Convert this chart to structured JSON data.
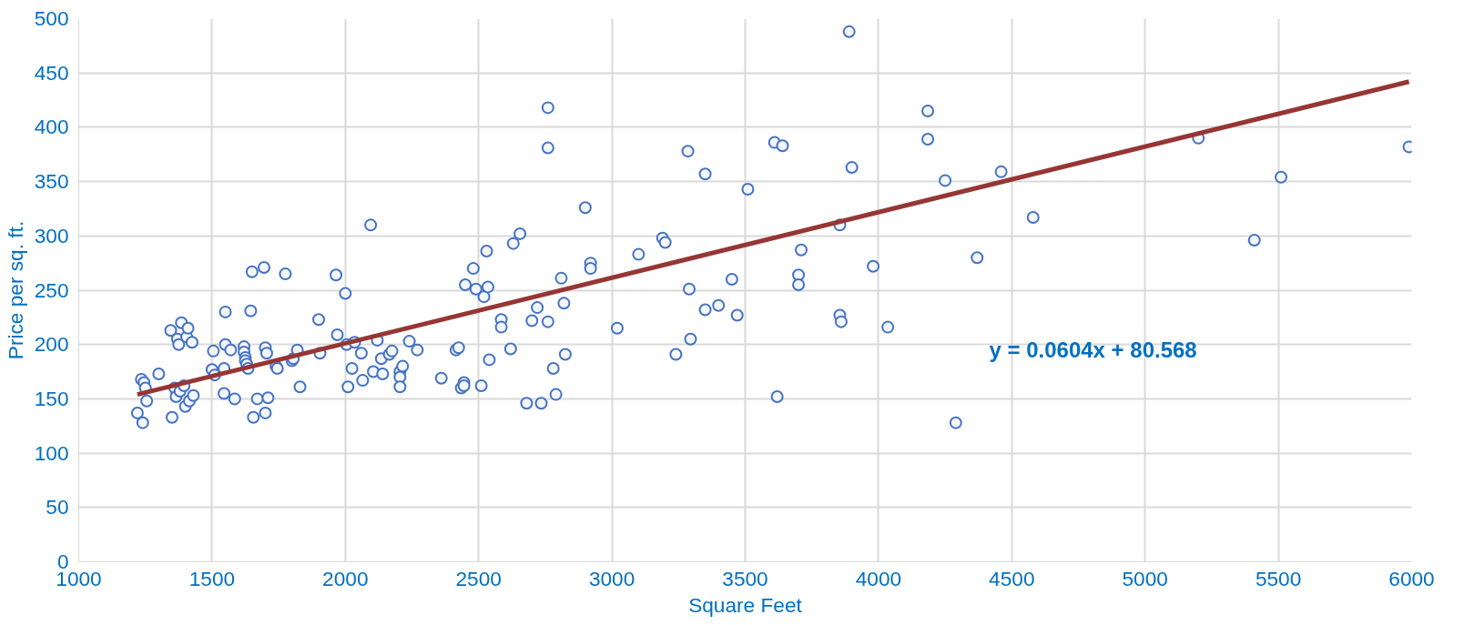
{
  "chart_data": {
    "type": "scatter",
    "xlabel": "Square Feet",
    "ylabel": "Price per sq. ft.",
    "xlim": [
      1000,
      6000
    ],
    "ylim": [
      0,
      500
    ],
    "xticks": [
      1000,
      1500,
      2000,
      2500,
      3000,
      3500,
      4000,
      4500,
      5000,
      5500,
      6000
    ],
    "yticks": [
      0,
      50,
      100,
      150,
      200,
      250,
      300,
      350,
      400,
      450,
      500
    ],
    "grid": true,
    "marker": "circle",
    "annotations": [
      "y = 0.0604x + 80.568"
    ],
    "series": [
      {
        "color": "#4472c4",
        "x": [
          1220,
          1235,
          1240,
          1245,
          1250,
          1255,
          1300,
          1345,
          1350,
          1360,
          1365,
          1370,
          1375,
          1380,
          1385,
          1395,
          1400,
          1405,
          1410,
          1415,
          1425,
          1430,
          1500,
          1505,
          1510,
          1545,
          1545,
          1550,
          1550,
          1570,
          1585,
          1620,
          1620,
          1625,
          1625,
          1630,
          1635,
          1645,
          1650,
          1655,
          1670,
          1695,
          1700,
          1700,
          1705,
          1710,
          1740,
          1745,
          1775,
          1800,
          1805,
          1820,
          1830,
          1900,
          1905,
          1965,
          1970,
          2000,
          2005,
          2010,
          2025,
          2035,
          2060,
          2065,
          2095,
          2105,
          2120,
          2135,
          2140,
          2165,
          2175,
          2205,
          2205,
          2205,
          2215,
          2240,
          2270,
          2360,
          2415,
          2425,
          2435,
          2445,
          2445,
          2450,
          2480,
          2490,
          2510,
          2520,
          2530,
          2535,
          2540,
          2585,
          2585,
          2620,
          2630,
          2655,
          2680,
          2700,
          2720,
          2735,
          2760,
          2760,
          2760,
          2780,
          2790,
          2810,
          2820,
          2825,
          2900,
          2920,
          2920,
          3020,
          3100,
          3190,
          3200,
          3240,
          3285,
          3290,
          3295,
          3350,
          3350,
          3400,
          3450,
          3470,
          3510,
          3610,
          3620,
          3640,
          3700,
          3700,
          3710,
          3855,
          3855,
          3860,
          3890,
          3900,
          3980,
          4035,
          4185,
          4185,
          4250,
          4290,
          4370,
          4460,
          4580,
          5200,
          5410,
          5510,
          5990
        ],
        "values": [
          137,
          168,
          128,
          165,
          160,
          148,
          173,
          213,
          133,
          160,
          152,
          205,
          200,
          157,
          220,
          162,
          143,
          207,
          215,
          148,
          202,
          153,
          177,
          194,
          172,
          178,
          155,
          200,
          230,
          195,
          150,
          198,
          193,
          188,
          185,
          182,
          178,
          231,
          267,
          133,
          150,
          271,
          137,
          197,
          192,
          151,
          180,
          178,
          265,
          185,
          187,
          195,
          161,
          223,
          192,
          264,
          209,
          247,
          200,
          161,
          178,
          202,
          192,
          167,
          310,
          175,
          204,
          187,
          173,
          191,
          194,
          175,
          170,
          161,
          180,
          203,
          195,
          169,
          195,
          197,
          160,
          165,
          162,
          255,
          270,
          251,
          162,
          244,
          286,
          253,
          186,
          223,
          216,
          196,
          293,
          302,
          146,
          222,
          234,
          146,
          418,
          381,
          221,
          178,
          154,
          261,
          238,
          191,
          326,
          275,
          270,
          215,
          283,
          298,
          294,
          191,
          378,
          251,
          205,
          357,
          232,
          236,
          260,
          227,
          343,
          386,
          152,
          383,
          264,
          255,
          287,
          310,
          227,
          221,
          488,
          363,
          272,
          216,
          415,
          389,
          351,
          128,
          280,
          359,
          317,
          390,
          296,
          354,
          382
        ]
      },
      {
        "type": "line",
        "color": "#963634",
        "x": [
          1220,
          5990
        ],
        "values": [
          154,
          442
        ],
        "line_style": "solid",
        "marker": "none"
      }
    ]
  }
}
